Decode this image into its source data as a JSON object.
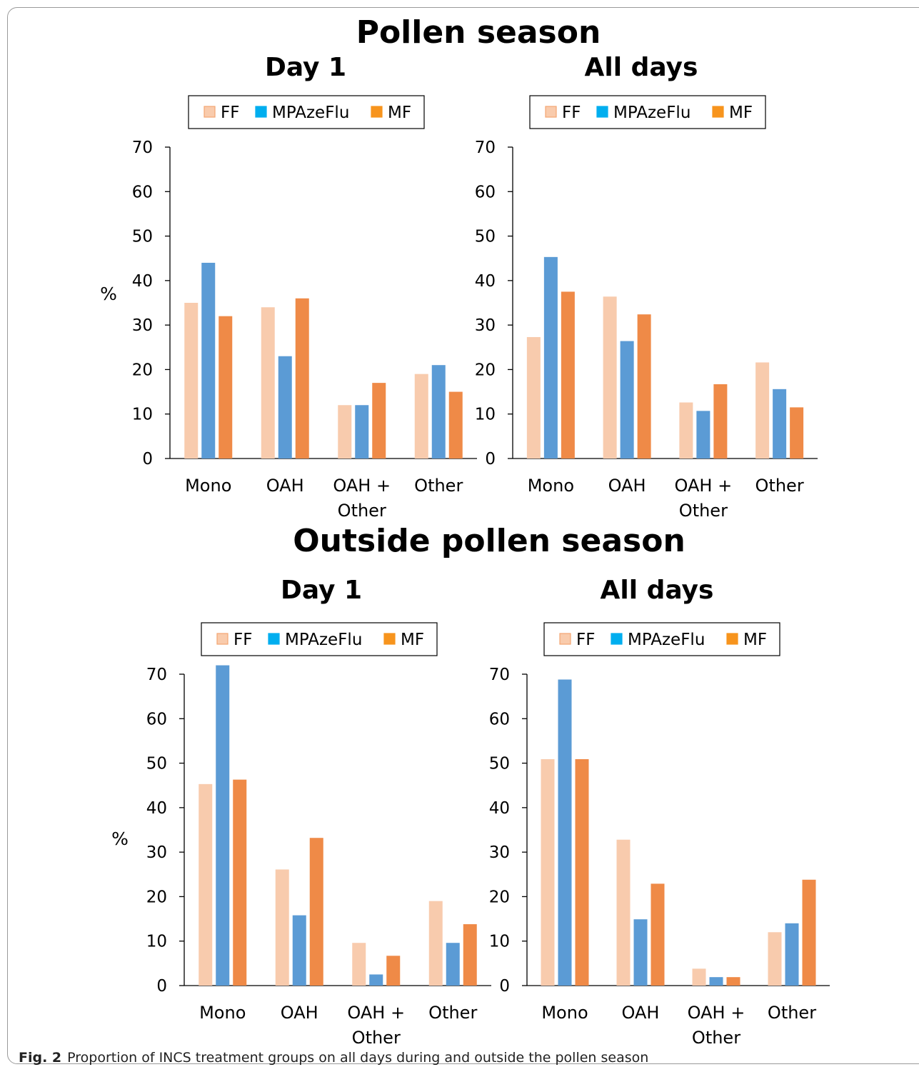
{
  "sections": [
    {
      "title": "Pollen season"
    },
    {
      "title": "Outside pollen season"
    }
  ],
  "legend_items": [
    {
      "name": "FF",
      "fill": "#f9cbac",
      "stroke": "#f4a572"
    },
    {
      "name": "MPAzeFlu",
      "fill": "#00aeef",
      "stroke": "#00aeef"
    },
    {
      "name": "MF",
      "fill": "#f7941d",
      "stroke": "#f7941d"
    }
  ],
  "series_colors": [
    "#f8cbad",
    "#5b9bd5",
    "#ef8a47"
  ],
  "chart_data": [
    {
      "type": "bar",
      "title": "Day 1",
      "ylabel": "%",
      "ylim": [
        0,
        70
      ],
      "yticks": [
        "0",
        "10",
        "20",
        "30",
        "40",
        "50",
        "60",
        "70"
      ],
      "categories": [
        [
          "Mono"
        ],
        [
          "OAH"
        ],
        [
          "OAH +",
          "Other"
        ],
        [
          "Other"
        ]
      ],
      "series": [
        {
          "name": "FF",
          "values": [
            35,
            34,
            12,
            19
          ]
        },
        {
          "name": "MPAzeFlu",
          "values": [
            44,
            23,
            12,
            21
          ]
        },
        {
          "name": "MF",
          "values": [
            32,
            36,
            17,
            15
          ]
        }
      ],
      "legend": "top",
      "grid": false
    },
    {
      "type": "bar",
      "title": "All days",
      "ylabel": "",
      "ylim": [
        0,
        70
      ],
      "yticks": [
        "0",
        "10",
        "20",
        "30",
        "40",
        "50",
        "60",
        "70"
      ],
      "categories": [
        [
          "Mono"
        ],
        [
          "OAH"
        ],
        [
          "OAH +",
          "Other"
        ],
        [
          "Other"
        ]
      ],
      "series": [
        {
          "name": "FF",
          "values": [
            27.3,
            36.4,
            12.6,
            21.6
          ]
        },
        {
          "name": "MPAzeFlu",
          "values": [
            45.3,
            26.4,
            10.7,
            15.6
          ]
        },
        {
          "name": "MF",
          "values": [
            37.5,
            32.4,
            16.7,
            11.5
          ]
        }
      ],
      "legend": "top",
      "grid": false
    },
    {
      "type": "bar",
      "title": "Day 1",
      "ylabel": "%",
      "ylim": [
        0,
        70
      ],
      "yticks": [
        "0",
        "10",
        "20",
        "30",
        "40",
        "50",
        "60",
        "70"
      ],
      "categories": [
        [
          "Mono"
        ],
        [
          "OAH"
        ],
        [
          "OAH +",
          "Other"
        ],
        [
          "Other"
        ]
      ],
      "series": [
        {
          "name": "FF",
          "values": [
            45.3,
            26.1,
            9.6,
            19
          ]
        },
        {
          "name": "MPAzeFlu",
          "values": [
            72,
            15.8,
            2.5,
            9.6
          ]
        },
        {
          "name": "MF",
          "values": [
            46.3,
            33.2,
            6.7,
            13.8
          ]
        }
      ],
      "legend": "top",
      "grid": false
    },
    {
      "type": "bar",
      "title": "All days",
      "ylabel": "",
      "ylim": [
        0,
        70
      ],
      "yticks": [
        "0",
        "10",
        "20",
        "30",
        "40",
        "50",
        "60",
        "70"
      ],
      "categories": [
        [
          "Mono"
        ],
        [
          "OAH"
        ],
        [
          "OAH +",
          "Other"
        ],
        [
          "Other"
        ]
      ],
      "series": [
        {
          "name": "FF",
          "values": [
            50.9,
            32.8,
            3.8,
            12
          ]
        },
        {
          "name": "MPAzeFlu",
          "values": [
            68.8,
            14.9,
            1.9,
            14
          ]
        },
        {
          "name": "MF",
          "values": [
            50.9,
            22.9,
            1.9,
            23.8
          ]
        }
      ],
      "legend": "top",
      "grid": false
    }
  ],
  "caption": {
    "label": "Fig. 2",
    "text": "Proportion of INCS treatment groups on all days during and outside the pollen season"
  }
}
